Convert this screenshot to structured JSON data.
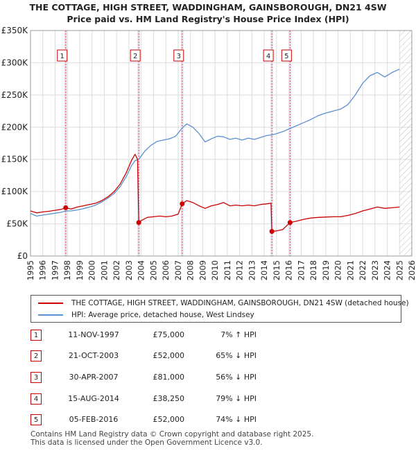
{
  "title_line1": "THE COTTAGE, HIGH STREET, WADDINGHAM, GAINSBOROUGH, DN21 4SW",
  "title_line2": "Price paid vs. HM Land Registry's House Price Index (HPI)",
  "colors": {
    "property": "#cc0000",
    "hpi": "#5b8fd1",
    "band": "#dde6f4",
    "grid": "#dddddd",
    "marker_dash": "#dd4444"
  },
  "chart_data": {
    "type": "line",
    "y_tick_labels": [
      "£0",
      "£50K",
      "£100K",
      "£150K",
      "£200K",
      "£250K",
      "£300K",
      "£350K"
    ],
    "y_ticks": [
      0,
      50000,
      100000,
      150000,
      200000,
      250000,
      300000,
      350000
    ],
    "ylim": [
      0,
      350000
    ],
    "xlim": [
      1995,
      2026
    ],
    "x_ticks": [
      1995,
      1996,
      1997,
      1998,
      1999,
      2000,
      2001,
      2002,
      2003,
      2004,
      2005,
      2006,
      2007,
      2008,
      2009,
      2010,
      2011,
      2012,
      2013,
      2014,
      2015,
      2016,
      2017,
      2018,
      2019,
      2020,
      2021,
      2022,
      2023,
      2024,
      2025,
      2026
    ],
    "x_tick_labels": [
      "1995",
      "1996",
      "1997",
      "1998",
      "1999",
      "2000",
      "2001",
      "2002",
      "2003",
      "2004",
      "2005",
      "2006",
      "2007",
      "2008",
      "2009",
      "2010",
      "2011",
      "2012",
      "2013",
      "2014",
      "2015",
      "2016",
      "2017",
      "2018",
      "2019",
      "2020",
      "2021",
      "2022",
      "2023",
      "2024",
      "2025",
      "2026"
    ],
    "data_end_year": 2025.0,
    "series": [
      {
        "name": "THE COTTAGE, HIGH STREET, WADDINGHAM, GAINSBOROUGH, DN21 4SW (detached house)",
        "color": "#cc0000",
        "points": [
          [
            1995.0,
            70000
          ],
          [
            1995.5,
            67000
          ],
          [
            1996.0,
            68500
          ],
          [
            1996.5,
            69500
          ],
          [
            1997.0,
            71000
          ],
          [
            1997.5,
            72500
          ],
          [
            1997.86,
            75000
          ],
          [
            1998.3,
            73000
          ],
          [
            1998.8,
            76000
          ],
          [
            1999.3,
            78000
          ],
          [
            1999.8,
            80000
          ],
          [
            2000.3,
            82000
          ],
          [
            2000.8,
            86000
          ],
          [
            2001.3,
            92000
          ],
          [
            2001.8,
            100000
          ],
          [
            2002.3,
            112000
          ],
          [
            2002.8,
            130000
          ],
          [
            2003.2,
            148000
          ],
          [
            2003.5,
            158000
          ],
          [
            2003.7,
            150000
          ],
          [
            2003.8,
            52000
          ],
          [
            2004.0,
            55000
          ],
          [
            2004.5,
            60000
          ],
          [
            2005.0,
            61000
          ],
          [
            2005.5,
            62000
          ],
          [
            2006.0,
            61000
          ],
          [
            2006.5,
            62000
          ],
          [
            2007.0,
            65000
          ],
          [
            2007.33,
            81000
          ],
          [
            2007.7,
            86000
          ],
          [
            2008.2,
            83000
          ],
          [
            2008.7,
            78000
          ],
          [
            2009.2,
            74000
          ],
          [
            2009.7,
            78000
          ],
          [
            2010.2,
            80000
          ],
          [
            2010.7,
            83000
          ],
          [
            2011.2,
            78000
          ],
          [
            2011.7,
            79000
          ],
          [
            2012.2,
            78000
          ],
          [
            2012.7,
            79000
          ],
          [
            2013.2,
            78000
          ],
          [
            2013.7,
            80000
          ],
          [
            2014.2,
            81000
          ],
          [
            2014.55,
            82000
          ],
          [
            2014.62,
            38250
          ],
          [
            2015.0,
            39000
          ],
          [
            2015.5,
            41000
          ],
          [
            2016.1,
            52000
          ],
          [
            2016.6,
            54000
          ],
          [
            2017.2,
            57000
          ],
          [
            2017.8,
            59000
          ],
          [
            2018.4,
            60000
          ],
          [
            2019.0,
            60500
          ],
          [
            2019.6,
            61000
          ],
          [
            2020.2,
            61000
          ],
          [
            2020.8,
            63000
          ],
          [
            2021.4,
            66000
          ],
          [
            2022.0,
            70000
          ],
          [
            2022.6,
            73000
          ],
          [
            2023.2,
            76000
          ],
          [
            2023.8,
            74000
          ],
          [
            2024.4,
            75000
          ],
          [
            2025.0,
            76000
          ]
        ]
      },
      {
        "name": "HPI: Average price, detached house, West Lindsey",
        "color": "#5b8fd1",
        "points": [
          [
            1995.0,
            66000
          ],
          [
            1995.5,
            62000
          ],
          [
            1996.0,
            63500
          ],
          [
            1996.5,
            65000
          ],
          [
            1997.0,
            66500
          ],
          [
            1997.5,
            68000
          ],
          [
            1997.86,
            70000
          ],
          [
            1998.3,
            70000
          ],
          [
            1998.8,
            71500
          ],
          [
            1999.3,
            73500
          ],
          [
            1999.8,
            76000
          ],
          [
            2000.3,
            79000
          ],
          [
            2000.8,
            84000
          ],
          [
            2001.3,
            90000
          ],
          [
            2001.8,
            97000
          ],
          [
            2002.3,
            108000
          ],
          [
            2002.8,
            124000
          ],
          [
            2003.2,
            140000
          ],
          [
            2003.5,
            148000
          ],
          [
            2003.8,
            150000
          ],
          [
            2004.3,
            163000
          ],
          [
            2004.8,
            172000
          ],
          [
            2005.3,
            178000
          ],
          [
            2005.8,
            180000
          ],
          [
            2006.3,
            182000
          ],
          [
            2006.8,
            186000
          ],
          [
            2007.3,
            198000
          ],
          [
            2007.7,
            205000
          ],
          [
            2008.2,
            200000
          ],
          [
            2008.7,
            190000
          ],
          [
            2009.2,
            177000
          ],
          [
            2009.7,
            182000
          ],
          [
            2010.2,
            186000
          ],
          [
            2010.7,
            185000
          ],
          [
            2011.2,
            181000
          ],
          [
            2011.7,
            183000
          ],
          [
            2012.2,
            180000
          ],
          [
            2012.7,
            183000
          ],
          [
            2013.2,
            181000
          ],
          [
            2013.7,
            184000
          ],
          [
            2014.2,
            187000
          ],
          [
            2014.6,
            188000
          ],
          [
            2015.0,
            190000
          ],
          [
            2015.5,
            193000
          ],
          [
            2016.1,
            198000
          ],
          [
            2016.6,
            202000
          ],
          [
            2017.2,
            207000
          ],
          [
            2017.8,
            212000
          ],
          [
            2018.4,
            218000
          ],
          [
            2019.0,
            222000
          ],
          [
            2019.6,
            225000
          ],
          [
            2020.2,
            228000
          ],
          [
            2020.8,
            235000
          ],
          [
            2021.4,
            250000
          ],
          [
            2022.0,
            268000
          ],
          [
            2022.6,
            280000
          ],
          [
            2023.2,
            285000
          ],
          [
            2023.8,
            278000
          ],
          [
            2024.4,
            285000
          ],
          [
            2025.0,
            290000
          ]
        ]
      }
    ],
    "sales": [
      {
        "label": "1",
        "x": 1997.86,
        "y": 75000
      },
      {
        "label": "2",
        "x": 2003.8,
        "y": 52000
      },
      {
        "label": "3",
        "x": 2007.33,
        "y": 81000
      },
      {
        "label": "4",
        "x": 2014.62,
        "y": 38250
      },
      {
        "label": "5",
        "x": 2016.1,
        "y": 52000
      }
    ]
  },
  "legend": {
    "property_label": "THE COTTAGE, HIGH STREET, WADDINGHAM, GAINSBOROUGH, DN21 4SW (detached house)",
    "hpi_label": "HPI: Average price, detached house, West Lindsey"
  },
  "transactions": [
    {
      "num": "1",
      "date": "11-NOV-1997",
      "price": "£75,000",
      "hpi": "7% ↑ HPI"
    },
    {
      "num": "2",
      "date": "21-OCT-2003",
      "price": "£52,000",
      "hpi": "65% ↓ HPI"
    },
    {
      "num": "3",
      "date": "30-APR-2007",
      "price": "£81,000",
      "hpi": "56% ↓ HPI"
    },
    {
      "num": "4",
      "date": "15-AUG-2014",
      "price": "£38,250",
      "hpi": "79% ↓ HPI"
    },
    {
      "num": "5",
      "date": "05-FEB-2016",
      "price": "£52,000",
      "hpi": "74% ↓ HPI"
    }
  ],
  "footer_line1": "Contains HM Land Registry data © Crown copyright and database right 2025.",
  "footer_line2": "This data is licensed under the Open Government Licence v3.0."
}
